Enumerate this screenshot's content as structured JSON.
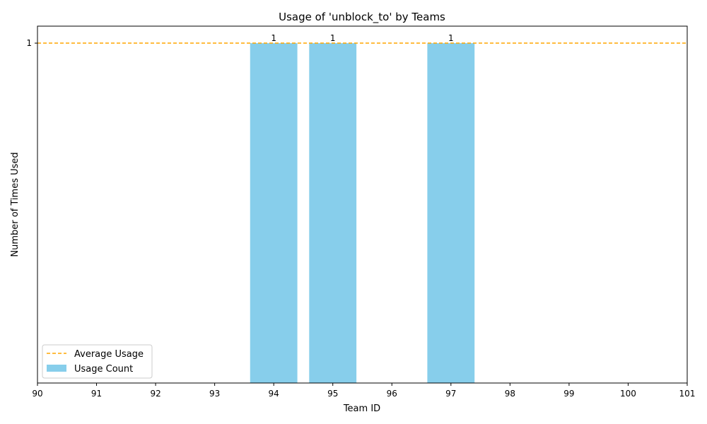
{
  "chart_data": {
    "type": "bar",
    "title": "Usage of 'unblock_to' by Teams",
    "xlabel": "Team ID",
    "ylabel": "Number of Times Used",
    "xlim": [
      90,
      101
    ],
    "ylim": [
      0,
      1.05
    ],
    "x_ticks": [
      "90",
      "91",
      "92",
      "93",
      "94",
      "95",
      "96",
      "97",
      "98",
      "99",
      "100",
      "101"
    ],
    "y_ticks": [
      "1"
    ],
    "bars": [
      {
        "x": 94,
        "value": 1,
        "label": "1"
      },
      {
        "x": 95,
        "value": 1,
        "label": "1"
      },
      {
        "x": 97,
        "value": 1,
        "label": "1"
      }
    ],
    "bar_width": 0.8,
    "average": 1,
    "legend": {
      "placement": "lower-left",
      "entries": [
        {
          "label": "Average Usage",
          "kind": "dashed-line",
          "color": "#ffa500"
        },
        {
          "label": "Usage Count",
          "kind": "bar",
          "color": "#87ceeb"
        }
      ]
    },
    "colors": {
      "bar": "#87ceeb",
      "average": "#ffa500"
    },
    "grid": false
  }
}
